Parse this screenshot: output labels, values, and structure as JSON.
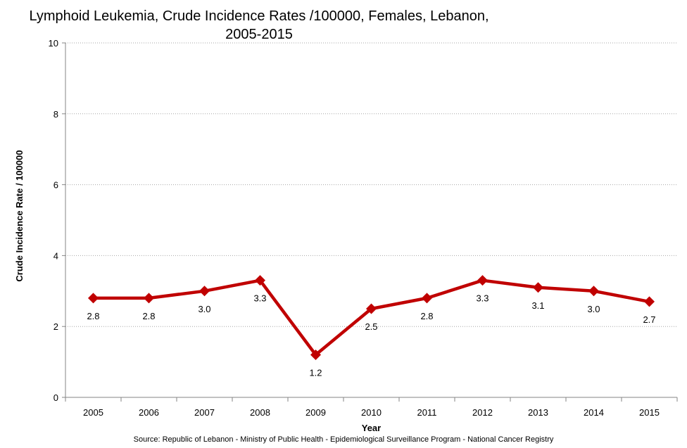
{
  "chart_data": {
    "type": "line",
    "title_line1": "Lymphoid Leukemia, Crude Incidence Rates /100000, Females, Lebanon,",
    "title_line2": "2005-2015",
    "xlabel": "Year",
    "ylabel": "Crude Incidence Rate / 100000",
    "categories": [
      "2005",
      "2006",
      "2007",
      "2008",
      "2009",
      "2010",
      "2011",
      "2012",
      "2013",
      "2014",
      "2015"
    ],
    "series": [
      {
        "values": [
          2.8,
          2.8,
          3.0,
          3.3,
          1.2,
          2.5,
          2.8,
          3.3,
          3.1,
          3.0,
          2.7
        ],
        "labels": [
          "2.8",
          "2.8",
          "3.0",
          "3.3",
          "1.2",
          "2.5",
          "2.8",
          "3.3",
          "3.1",
          "3.0",
          "2.7"
        ],
        "color": "#c00000",
        "marker": "diamond"
      }
    ],
    "ylim": [
      0,
      10
    ],
    "yticks": [
      "0",
      "2",
      "4",
      "6",
      "8",
      "10"
    ],
    "grid": "horizontal dotted",
    "legend": "none"
  },
  "source": "Source:  Republic of Lebanon - Ministry of Public Health - Epidemiological Surveillance Program - National Cancer Registry"
}
